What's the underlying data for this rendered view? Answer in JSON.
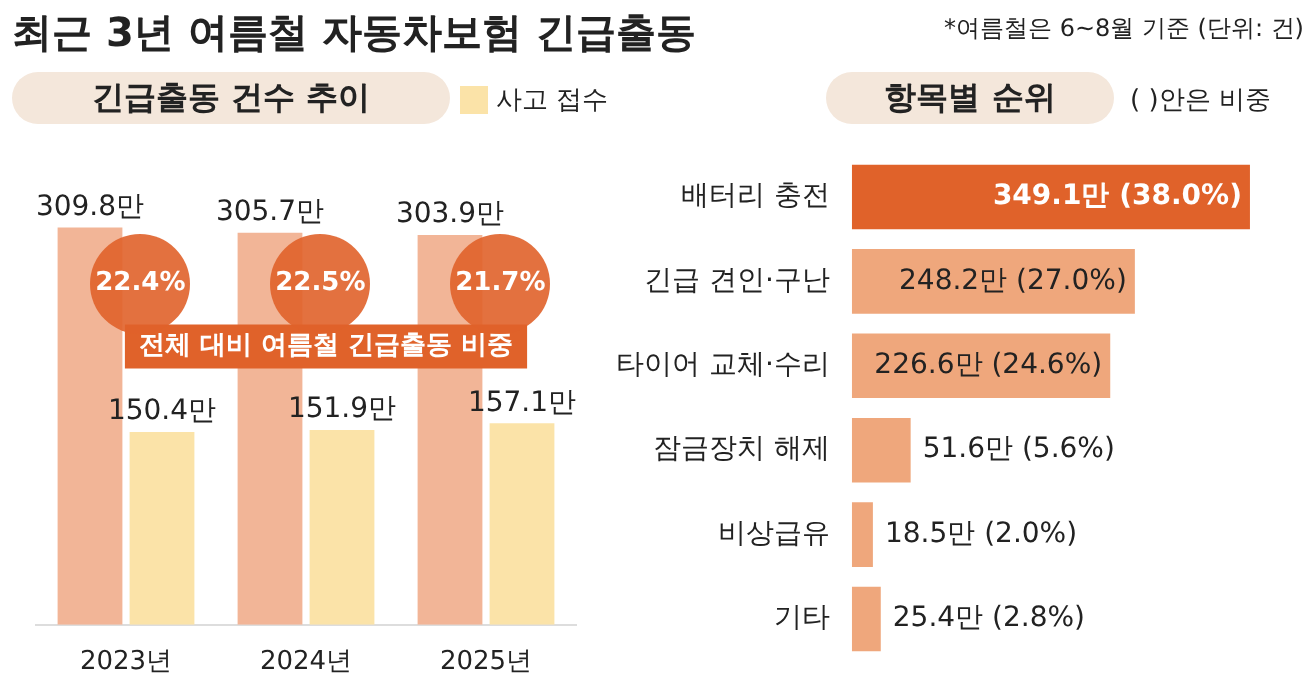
{
  "chart_data": [
    {
      "type": "bar",
      "title": "최근 3년 여름철 자동차보험 긴급출동",
      "subtitle": "긴급출동 건수 추이",
      "categories": [
        "2023년",
        "2024년",
        "2025년"
      ],
      "series": [
        {
          "color": "#f2b597",
          "values": [
            309.8,
            305.7,
            303.9
          ],
          "value_labels": [
            "309.8만",
            "305.7만",
            "303.9만"
          ]
        },
        {
          "name": "사고 접수",
          "color": "#fbe3a8",
          "values": [
            150.4,
            151.9,
            157.1
          ],
          "value_labels": [
            "150.4만",
            "151.9만",
            "157.1만"
          ]
        }
      ],
      "annotations": [
        "22.4%",
        "22.5%",
        "21.7%",
        "전체 대비 여름철 긴급출동 비중"
      ],
      "legend": "top right"
    },
    {
      "type": "bar",
      "orientation": "horizontal",
      "title": "항목별 순위",
      "categories": [
        "배터리 충전",
        "긴급 견인·구난",
        "타이어 교체·수리",
        "잠금장치 해제",
        "비상급유",
        "기타"
      ],
      "values": [
        349.1,
        248.2,
        226.6,
        51.6,
        18.5,
        25.4
      ],
      "colors": [
        "#e0622a",
        "#efa77c",
        "#efa77c",
        "#efa77c",
        "#efa77c",
        "#efa77c"
      ],
      "value_labels": [
        "349.1만 (38.0%)",
        "248.2만 (27.0%)",
        "226.6만 (24.6%)",
        "51.6만 (5.6%)",
        "18.5만 (2.0%)",
        "25.4만 (2.8%)"
      ],
      "annotations": [
        "*여름철은 6~8월 기준 (단위: 건)",
        "( )안은 비중"
      ]
    }
  ]
}
